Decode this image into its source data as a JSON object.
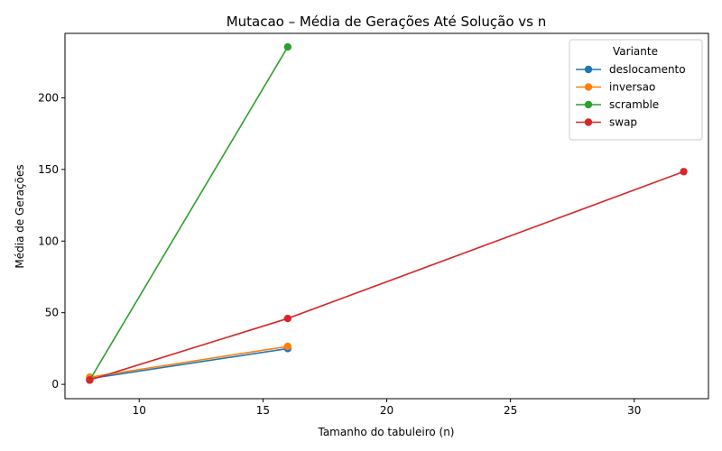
{
  "chart_data": {
    "type": "line",
    "title": "Mutacao – Média de Gerações Até Solução vs n",
    "xlabel": "Tamanho do tabuleiro (n)",
    "ylabel": "Média de Gerações",
    "xlim": [
      7,
      33
    ],
    "ylim": [
      -10,
      245
    ],
    "xticks": [
      10,
      15,
      20,
      25,
      30
    ],
    "yticks": [
      0,
      50,
      100,
      150,
      200
    ],
    "grid": false,
    "legend": {
      "title": "Variante",
      "position": "top-right"
    },
    "series": [
      {
        "name": "deslocamento",
        "color": "#1f77b4",
        "x": [
          8,
          16
        ],
        "y": [
          4,
          25
        ]
      },
      {
        "name": "inversao",
        "color": "#ff7f0e",
        "x": [
          8,
          16
        ],
        "y": [
          5,
          26.5
        ]
      },
      {
        "name": "scramble",
        "color": "#2ca02c",
        "x": [
          8,
          16
        ],
        "y": [
          3,
          235.5
        ]
      },
      {
        "name": "swap",
        "color": "#d62728",
        "x": [
          8,
          16,
          32
        ],
        "y": [
          3,
          46,
          148.5
        ]
      }
    ]
  }
}
